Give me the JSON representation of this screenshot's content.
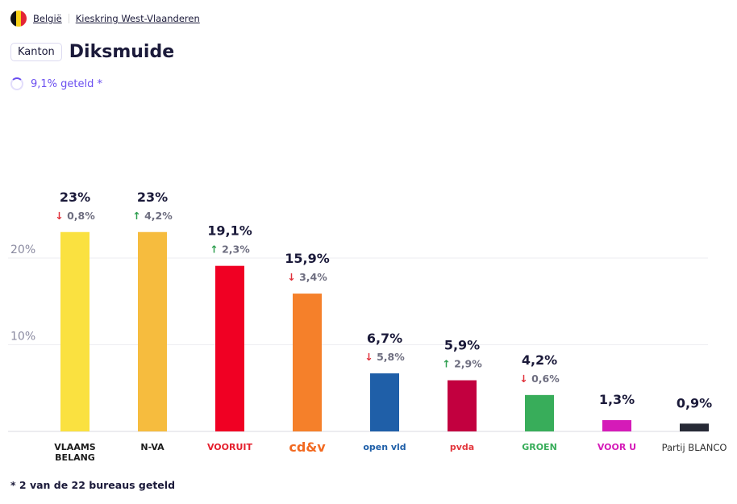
{
  "breadcrumb": {
    "country": "België",
    "district": "Kieskring West-Vlaanderen"
  },
  "header": {
    "badge": "Kanton",
    "title": "Diksmuide"
  },
  "progress": {
    "label": "9,1% geteld *",
    "percent": 9.1
  },
  "footnote": "* 2 van de 22 bureaus geteld",
  "colors": {
    "accent": "#6b4ff0",
    "up": "#2e9e4f",
    "down": "#e0303a"
  },
  "chart_data": {
    "type": "bar",
    "ylim": [
      0,
      25
    ],
    "yticks": [
      {
        "value": 10,
        "label": "10%"
      },
      {
        "value": 20,
        "label": "20%"
      }
    ],
    "grid": true,
    "categories": [
      "VLAAMS BELANG",
      "N-VA",
      "VOORUIT",
      "cd&v",
      "open vld",
      "pvda",
      "GROEN",
      "VOOR U",
      "Partij BLANCO"
    ],
    "values": [
      23,
      23,
      19.1,
      15.9,
      6.7,
      5.9,
      4.2,
      1.3,
      0.9
    ],
    "labels": [
      "23%",
      "23%",
      "19,1%",
      "15,9%",
      "6,7%",
      "5,9%",
      "4,2%",
      "1,3%",
      "0,9%"
    ],
    "changes": [
      {
        "dir": "down",
        "label": "0,8%"
      },
      {
        "dir": "up",
        "label": "4,2%"
      },
      {
        "dir": "up",
        "label": "2,3%"
      },
      {
        "dir": "down",
        "label": "3,4%"
      },
      {
        "dir": "down",
        "label": "5,8%"
      },
      {
        "dir": "up",
        "label": "2,9%"
      },
      {
        "dir": "down",
        "label": "0,6%"
      },
      null,
      null
    ],
    "bar_colors": [
      "#fae140",
      "#f6bc3e",
      "#f00023",
      "#f5802a",
      "#1f5fa8",
      "#c2003f",
      "#38ad5a",
      "#d51bb8",
      "#272a36"
    ],
    "logo_colors": [
      "#1b1b1b",
      "#1b1b1b",
      "#e5202e",
      "#f26a21",
      "#1f5fa8",
      "#e3373d",
      "#38ad5a",
      "#d51bb8",
      "#333"
    ]
  }
}
